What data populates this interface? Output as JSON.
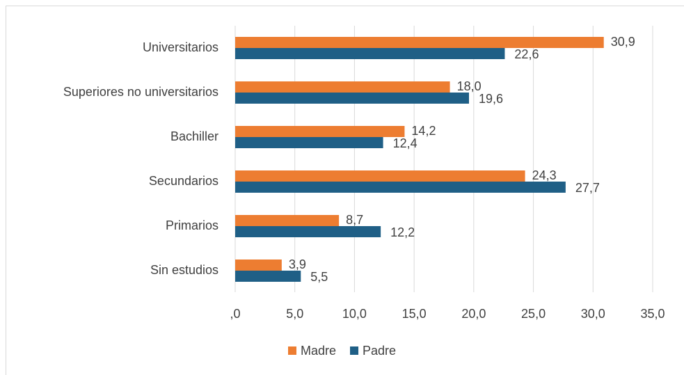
{
  "chart_data": {
    "type": "hbar",
    "categories": [
      "Universitarios",
      "Superiores no universitarios",
      "Bachiller",
      "Secundarios",
      "Primarios",
      "Sin estudios"
    ],
    "series": [
      {
        "name": "Madre",
        "color": "#ed7d31",
        "values": [
          30.9,
          18.0,
          14.2,
          24.3,
          8.7,
          3.9
        ],
        "value_labels": [
          "30,9",
          "18,0",
          "14,2",
          "24,3",
          "8,7",
          "3,9"
        ]
      },
      {
        "name": "Padre",
        "color": "#1f5f86",
        "values": [
          22.6,
          19.6,
          12.4,
          27.7,
          12.2,
          5.5
        ],
        "value_labels": [
          "22,6",
          "19,6",
          "12,4",
          "27,7",
          "12,2",
          "5,5"
        ]
      }
    ],
    "xlim": [
      0,
      35
    ],
    "xticks": [
      {
        "value": 0,
        "label": ",0"
      },
      {
        "value": 5,
        "label": "5,0"
      },
      {
        "value": 10,
        "label": "10,0"
      },
      {
        "value": 15,
        "label": "15,0"
      },
      {
        "value": 20,
        "label": "20,0"
      },
      {
        "value": 25,
        "label": "25,0"
      },
      {
        "value": 30,
        "label": "30,0"
      },
      {
        "value": 35,
        "label": "35,0"
      }
    ],
    "grid": true,
    "legend": "bottom"
  }
}
